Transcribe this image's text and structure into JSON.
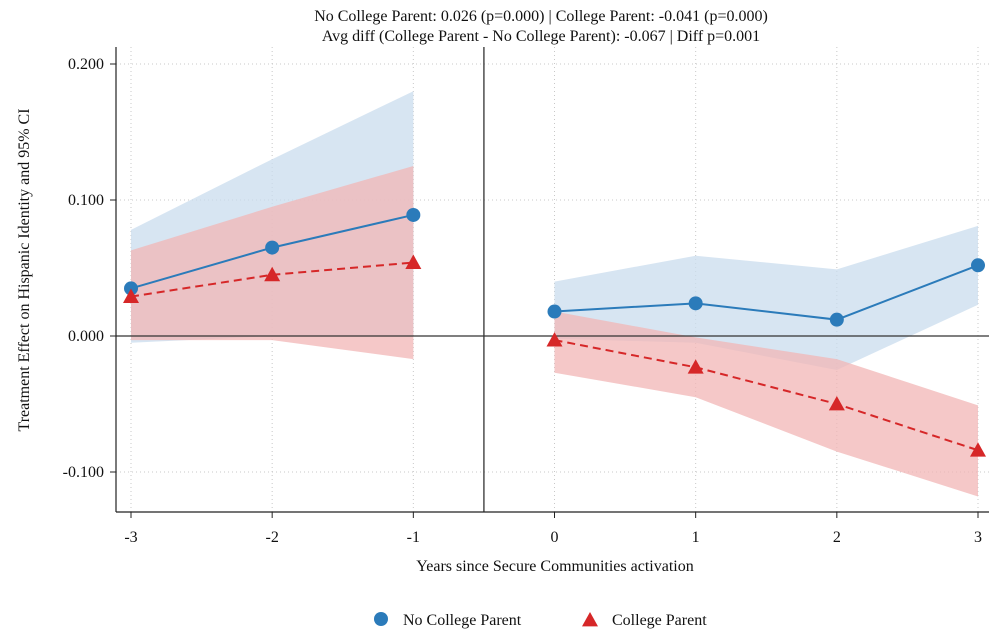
{
  "chart_data": {
    "type": "line",
    "title_lines": [
      "No College Parent: 0.026 (p=0.000)  |  College Parent: -0.041 (p=0.000)",
      "Avg diff (College Parent - No College Parent): -0.067  |  Diff p=0.001"
    ],
    "xlabel": "Years since Secure Communities activation",
    "ylabel": "Treatment Effect on Hispanic Identity and 95% CI",
    "x_ticks": [
      -3,
      -2,
      -1,
      0,
      1,
      2,
      3
    ],
    "x_tick_labels": [
      "-3",
      "-2",
      "-1",
      "0",
      "1",
      "2",
      "3"
    ],
    "y_ticks": [
      -0.1,
      0,
      0.1,
      0.2
    ],
    "y_tick_labels": [
      "-0.100",
      "0.000",
      "0.100",
      "0.200"
    ],
    "ylim": [
      -0.13,
      0.21
    ],
    "event_line_x": -0.5,
    "grid": "dotted",
    "legend_position": "bottom",
    "series": [
      {
        "name": "No College Parent",
        "color": "#2b7bba",
        "band_color": "#c9dcee",
        "marker": "circle",
        "line_style": "solid",
        "segments": [
          {
            "x": [
              -3,
              -2,
              -1
            ],
            "y": [
              0.035,
              0.065,
              0.089
            ],
            "lo": [
              -0.005,
              0.0,
              0.0
            ],
            "hi": [
              0.078,
              0.13,
              0.18
            ]
          },
          {
            "x": [
              0,
              1,
              2,
              3
            ],
            "y": [
              0.018,
              0.024,
              0.012,
              0.052
            ],
            "lo": [
              -0.002,
              -0.005,
              -0.025,
              0.023
            ],
            "hi": [
              0.04,
              0.059,
              0.049,
              0.081
            ]
          }
        ]
      },
      {
        "name": "College Parent",
        "color": "#d62728",
        "band_color": "#f1b6b6",
        "marker": "triangle",
        "line_style": "dashed",
        "segments": [
          {
            "x": [
              -3,
              -2,
              -1
            ],
            "y": [
              0.029,
              0.045,
              0.054
            ],
            "lo": [
              -0.003,
              -0.003,
              -0.017
            ],
            "hi": [
              0.063,
              0.095,
              0.125
            ]
          },
          {
            "x": [
              0,
              1,
              2,
              3
            ],
            "y": [
              -0.003,
              -0.023,
              -0.05,
              -0.084
            ],
            "lo": [
              -0.027,
              -0.045,
              -0.085,
              -0.118
            ],
            "hi": [
              0.018,
              -0.001,
              -0.017,
              -0.051
            ]
          }
        ]
      }
    ]
  }
}
